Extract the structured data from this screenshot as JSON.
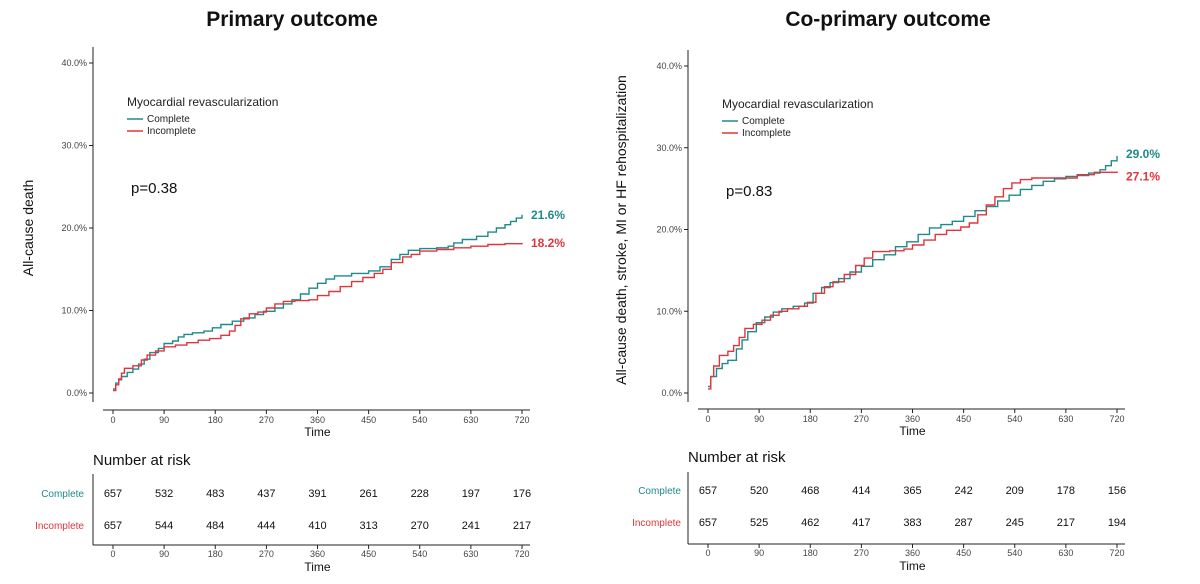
{
  "colors": {
    "complete": "#1f8a8a",
    "incomplete": "#e0353b",
    "axis": "#222222"
  },
  "chart_data": [
    {
      "type": "line",
      "title": "Primary outcome",
      "xlabel": "Time",
      "ylabel": "All-cause death",
      "xlim": [
        0,
        720
      ],
      "ylim": [
        0,
        40
      ],
      "x_ticks": [
        0,
        90,
        180,
        270,
        360,
        450,
        540,
        630,
        720
      ],
      "y_ticks": [
        "0.0%",
        "10.0%",
        "20.0%",
        "30.0%",
        "40.0%"
      ],
      "legend_title": "Myocardial revascularization",
      "legend": [
        "Complete",
        "Incomplete"
      ],
      "p_value": "p=0.38",
      "series": [
        {
          "name": "Complete",
          "end_label": "21.6%",
          "points": [
            [
              0,
              0.5
            ],
            [
              5,
              1.2
            ],
            [
              10,
              1.6
            ],
            [
              15,
              2.0
            ],
            [
              25,
              2.5
            ],
            [
              35,
              2.9
            ],
            [
              45,
              3.5
            ],
            [
              55,
              4.1
            ],
            [
              65,
              4.9
            ],
            [
              80,
              5.4
            ],
            [
              90,
              6.0
            ],
            [
              105,
              6.3
            ],
            [
              115,
              6.8
            ],
            [
              125,
              7.1
            ],
            [
              140,
              7.3
            ],
            [
              160,
              7.5
            ],
            [
              175,
              7.9
            ],
            [
              190,
              8.3
            ],
            [
              210,
              8.7
            ],
            [
              230,
              9.1
            ],
            [
              250,
              9.5
            ],
            [
              265,
              9.9
            ],
            [
              285,
              10.3
            ],
            [
              300,
              10.8
            ],
            [
              315,
              11.3
            ],
            [
              330,
              12.0
            ],
            [
              345,
              12.7
            ],
            [
              360,
              13.3
            ],
            [
              375,
              13.8
            ],
            [
              390,
              14.2
            ],
            [
              420,
              14.5
            ],
            [
              450,
              14.8
            ],
            [
              470,
              15.3
            ],
            [
              490,
              16.2
            ],
            [
              505,
              16.8
            ],
            [
              520,
              17.3
            ],
            [
              540,
              17.5
            ],
            [
              570,
              17.6
            ],
            [
              590,
              17.8
            ],
            [
              600,
              18.2
            ],
            [
              615,
              18.6
            ],
            [
              640,
              19.0
            ],
            [
              660,
              19.5
            ],
            [
              675,
              20.0
            ],
            [
              690,
              20.4
            ],
            [
              700,
              20.8
            ],
            [
              710,
              21.2
            ],
            [
              720,
              21.6
            ]
          ]
        },
        {
          "name": "Incomplete",
          "end_label": "18.2%",
          "points": [
            [
              0,
              0.3
            ],
            [
              5,
              1.0
            ],
            [
              10,
              1.7
            ],
            [
              15,
              2.4
            ],
            [
              20,
              3.0
            ],
            [
              35,
              3.3
            ],
            [
              50,
              4.0
            ],
            [
              60,
              4.6
            ],
            [
              75,
              5.1
            ],
            [
              90,
              5.6
            ],
            [
              110,
              5.8
            ],
            [
              130,
              6.1
            ],
            [
              150,
              6.4
            ],
            [
              170,
              6.6
            ],
            [
              190,
              7.0
            ],
            [
              205,
              7.5
            ],
            [
              215,
              8.2
            ],
            [
              225,
              9.0
            ],
            [
              240,
              9.6
            ],
            [
              255,
              9.8
            ],
            [
              270,
              10.3
            ],
            [
              285,
              10.8
            ],
            [
              300,
              11.1
            ],
            [
              320,
              11.2
            ],
            [
              345,
              11.3
            ],
            [
              360,
              11.8
            ],
            [
              380,
              12.3
            ],
            [
              400,
              12.9
            ],
            [
              420,
              13.5
            ],
            [
              440,
              14.0
            ],
            [
              460,
              14.5
            ],
            [
              475,
              15.0
            ],
            [
              490,
              15.8
            ],
            [
              510,
              16.5
            ],
            [
              525,
              16.8
            ],
            [
              540,
              17.2
            ],
            [
              570,
              17.4
            ],
            [
              600,
              17.6
            ],
            [
              630,
              17.8
            ],
            [
              660,
              18.0
            ],
            [
              690,
              18.1
            ],
            [
              720,
              18.2
            ]
          ]
        }
      ],
      "risk_table": {
        "title": "Number at risk",
        "rows": [
          {
            "name": "Complete",
            "values": [
              657,
              532,
              483,
              437,
              391,
              261,
              228,
              197,
              176
            ]
          },
          {
            "name": "Incomplete",
            "values": [
              657,
              544,
              484,
              444,
              410,
              313,
              270,
              241,
              217
            ]
          }
        ],
        "x_ticks": [
          0,
          90,
          180,
          270,
          360,
          450,
          540,
          630,
          720
        ],
        "xlabel": "Time"
      }
    },
    {
      "type": "line",
      "title": "Co-primary outcome",
      "xlabel": "Time",
      "ylabel": "All-cause death, stroke, MI or HF rehospitalization",
      "xlim": [
        0,
        720
      ],
      "ylim": [
        0,
        40
      ],
      "x_ticks": [
        0,
        90,
        180,
        270,
        360,
        450,
        540,
        630,
        720
      ],
      "y_ticks": [
        "0.0%",
        "10.0%",
        "20.0%",
        "30.0%",
        "40.0%"
      ],
      "legend_title": "Myocardial revascularization",
      "legend": [
        "Complete",
        "Incomplete"
      ],
      "p_value": "p=0.83",
      "series": [
        {
          "name": "Complete",
          "end_label": "29.0%",
          "points": [
            [
              0,
              0.8
            ],
            [
              5,
              2.0
            ],
            [
              15,
              3.0
            ],
            [
              25,
              3.6
            ],
            [
              35,
              4.0
            ],
            [
              50,
              5.4
            ],
            [
              60,
              6.5
            ],
            [
              70,
              7.5
            ],
            [
              85,
              8.6
            ],
            [
              100,
              9.3
            ],
            [
              115,
              9.9
            ],
            [
              130,
              10.3
            ],
            [
              150,
              10.6
            ],
            [
              170,
              11.0
            ],
            [
              185,
              12.2
            ],
            [
              200,
              12.9
            ],
            [
              215,
              13.5
            ],
            [
              230,
              14.0
            ],
            [
              250,
              14.8
            ],
            [
              270,
              15.5
            ],
            [
              290,
              16.3
            ],
            [
              310,
              16.9
            ],
            [
              330,
              17.9
            ],
            [
              350,
              18.5
            ],
            [
              370,
              19.4
            ],
            [
              390,
              20.2
            ],
            [
              410,
              20.6
            ],
            [
              430,
              21.0
            ],
            [
              450,
              21.6
            ],
            [
              470,
              22.3
            ],
            [
              490,
              22.8
            ],
            [
              510,
              23.5
            ],
            [
              530,
              24.2
            ],
            [
              550,
              24.9
            ],
            [
              570,
              25.4
            ],
            [
              590,
              25.9
            ],
            [
              610,
              26.2
            ],
            [
              630,
              26.5
            ],
            [
              650,
              26.6
            ],
            [
              670,
              26.9
            ],
            [
              690,
              27.3
            ],
            [
              700,
              27.8
            ],
            [
              710,
              28.4
            ],
            [
              720,
              29.0
            ]
          ]
        },
        {
          "name": "Incomplete",
          "end_label": "27.1%",
          "points": [
            [
              0,
              0.5
            ],
            [
              5,
              2.0
            ],
            [
              10,
              3.3
            ],
            [
              20,
              4.6
            ],
            [
              35,
              5.1
            ],
            [
              45,
              5.8
            ],
            [
              55,
              6.8
            ],
            [
              65,
              7.9
            ],
            [
              80,
              8.4
            ],
            [
              95,
              8.9
            ],
            [
              110,
              9.5
            ],
            [
              125,
              10.0
            ],
            [
              140,
              10.3
            ],
            [
              160,
              10.6
            ],
            [
              175,
              11.1
            ],
            [
              190,
              12.2
            ],
            [
              205,
              13.0
            ],
            [
              220,
              13.6
            ],
            [
              240,
              14.5
            ],
            [
              260,
              15.6
            ],
            [
              275,
              16.5
            ],
            [
              290,
              17.3
            ],
            [
              320,
              17.4
            ],
            [
              345,
              17.6
            ],
            [
              360,
              18.1
            ],
            [
              380,
              18.7
            ],
            [
              400,
              19.4
            ],
            [
              420,
              19.9
            ],
            [
              445,
              20.3
            ],
            [
              460,
              20.8
            ],
            [
              475,
              21.8
            ],
            [
              490,
              23.0
            ],
            [
              505,
              24.0
            ],
            [
              520,
              25.0
            ],
            [
              535,
              25.7
            ],
            [
              550,
              26.1
            ],
            [
              570,
              26.3
            ],
            [
              600,
              26.3
            ],
            [
              620,
              26.3
            ],
            [
              650,
              26.7
            ],
            [
              680,
              27.0
            ],
            [
              720,
              27.1
            ]
          ]
        }
      ],
      "risk_table": {
        "title": "Number at risk",
        "rows": [
          {
            "name": "Complete",
            "values": [
              657,
              520,
              468,
              414,
              365,
              242,
              209,
              178,
              156
            ]
          },
          {
            "name": "Incomplete",
            "values": [
              657,
              525,
              462,
              417,
              383,
              287,
              245,
              217,
              194
            ]
          }
        ],
        "x_ticks": [
          0,
          90,
          180,
          270,
          360,
          450,
          540,
          630,
          720
        ],
        "xlabel": "Time"
      }
    }
  ]
}
